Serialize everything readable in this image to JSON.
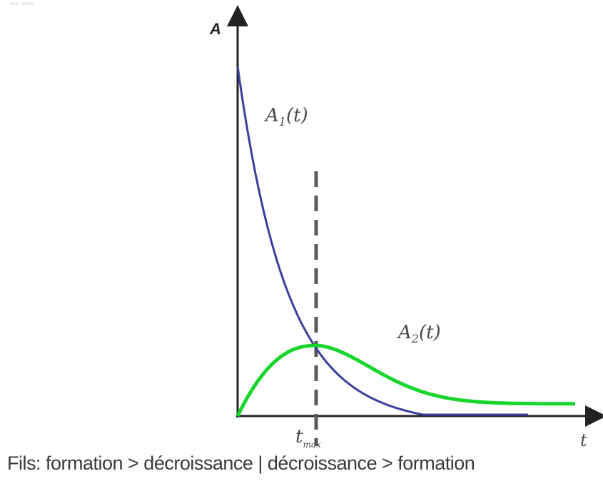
{
  "chart_data": {
    "type": "line",
    "title": "",
    "ylabel": "A",
    "xlabel": "t",
    "x_tick_labels": [
      {
        "x": 1,
        "label": "t_max"
      }
    ],
    "xlim": [
      0,
      3.8
    ],
    "ylim": [
      0,
      1
    ],
    "marker_line": {
      "x": 1,
      "style": "dashed"
    },
    "series": [
      {
        "name": "A1(t)",
        "color": "#3a3f9a",
        "equation": "A1 = exp(-1.6 t)"
      },
      {
        "name": "A2(t)",
        "color": "#18d62e",
        "equation": "A2 = peak at t_max, plateau ~0.05"
      }
    ],
    "grid": false,
    "legend": "none"
  },
  "labels": {
    "y_axis": "A",
    "x_axis": "t",
    "series1_main": "A",
    "series1_sub": "1",
    "series1_arg": "(t)",
    "series2_main": "A",
    "series2_sub": "2",
    "series2_arg": "(t)",
    "tick_main": "t",
    "tick_sub": "max"
  },
  "caption": "Fils: formation > décroissance | décroissance > formation"
}
